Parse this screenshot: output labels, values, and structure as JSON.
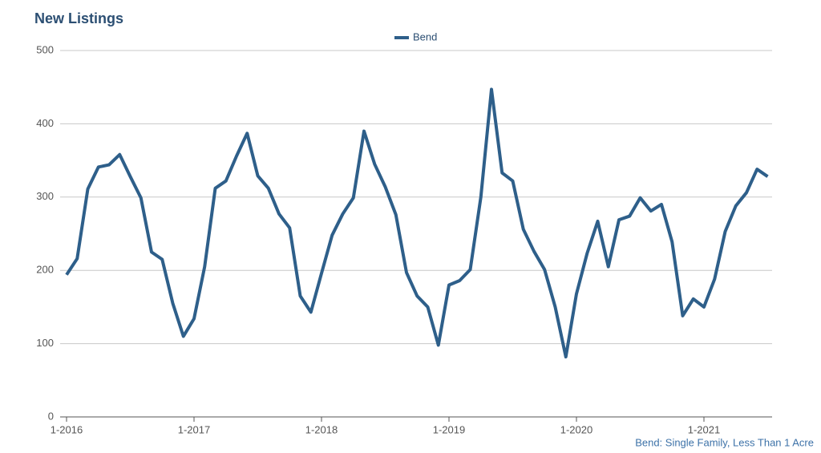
{
  "chart_data": {
    "type": "line",
    "title": "New Listings",
    "categories": [
      "1-2016",
      null,
      null,
      null,
      null,
      null,
      null,
      null,
      null,
      null,
      null,
      null,
      "1-2017",
      null,
      null,
      null,
      null,
      null,
      null,
      null,
      null,
      null,
      null,
      null,
      "1-2018",
      null,
      null,
      null,
      null,
      null,
      null,
      null,
      null,
      null,
      null,
      null,
      "1-2019",
      null,
      null,
      null,
      null,
      null,
      null,
      null,
      null,
      null,
      null,
      null,
      "1-2020",
      null,
      null,
      null,
      null,
      null,
      null,
      null,
      null,
      null,
      null,
      null,
      "1-2021",
      null,
      null,
      null,
      null,
      null,
      null
    ],
    "series": [
      {
        "name": "Bend",
        "color": "#2e5f8a",
        "values": [
          194,
          216,
          311,
          341,
          344,
          358,
          328,
          299,
          225,
          215,
          155,
          110,
          134,
          205,
          312,
          322,
          356,
          387,
          329,
          312,
          277,
          258,
          165,
          143,
          196,
          248,
          277,
          299,
          390,
          345,
          314,
          276,
          197,
          165,
          150,
          98,
          180,
          186,
          201,
          300,
          447,
          333,
          322,
          256,
          226,
          201,
          150,
          82,
          168,
          223,
          267,
          205,
          269,
          274,
          299,
          281,
          290,
          239,
          138,
          161,
          150,
          188,
          253,
          288,
          306,
          338,
          328
        ]
      }
    ],
    "ylim": [
      0,
      500
    ],
    "yticks": [
      0,
      100,
      200,
      300,
      400,
      500
    ],
    "grid": true,
    "legend": "top",
    "annotation": "Bend: Single Family, Less Than 1 Acre"
  }
}
